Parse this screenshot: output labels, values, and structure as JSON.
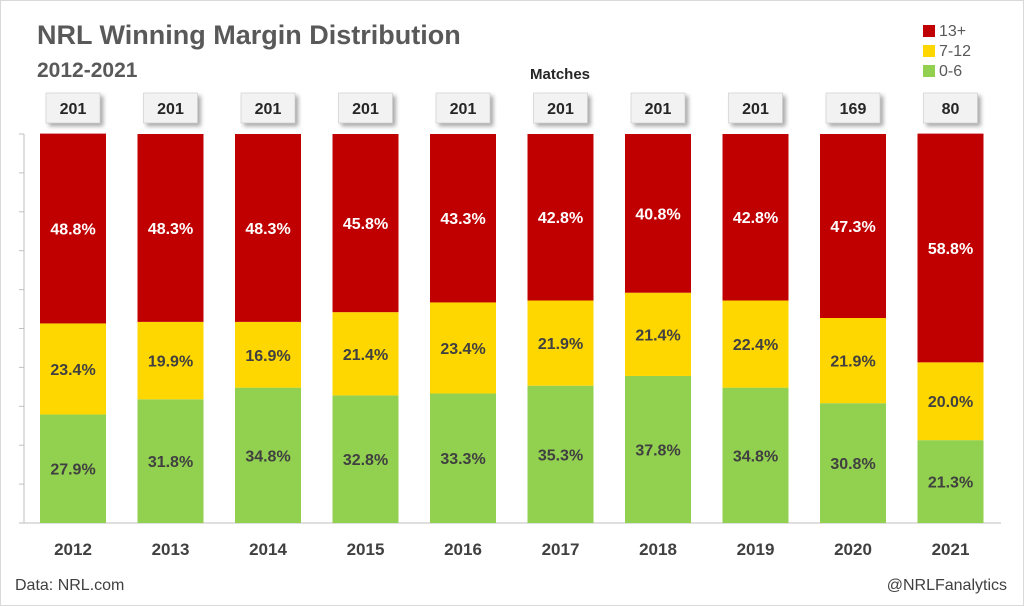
{
  "chart_data": {
    "type": "bar",
    "stacked": true,
    "percent": true,
    "title": "NRL Winning Margin Distribution",
    "subtitle": "2012-2021",
    "counts_label": "Matches",
    "categories": [
      "2012",
      "2013",
      "2014",
      "2015",
      "2016",
      "2017",
      "2018",
      "2019",
      "2020",
      "2021"
    ],
    "matches": [
      201,
      201,
      201,
      201,
      201,
      201,
      201,
      201,
      169,
      80
    ],
    "series": [
      {
        "name": "0-6",
        "color": "#92d050",
        "text_color": "#404040",
        "values": [
          27.9,
          31.8,
          34.8,
          32.8,
          33.3,
          35.3,
          37.8,
          34.8,
          30.8,
          21.3
        ]
      },
      {
        "name": "7-12",
        "color": "#ffd700",
        "text_color": "#404040",
        "values": [
          23.4,
          19.9,
          16.9,
          21.4,
          23.4,
          21.9,
          21.4,
          22.4,
          21.9,
          20.0
        ]
      },
      {
        "name": "13+",
        "color": "#c00000",
        "text_color": "#ffffff",
        "values": [
          48.8,
          48.3,
          48.3,
          45.8,
          43.3,
          42.8,
          40.8,
          42.8,
          47.3,
          58.8
        ]
      }
    ],
    "legend": [
      "13+",
      "7-12",
      "0-6"
    ],
    "ylim": [
      0,
      100
    ],
    "grid": false,
    "legend_position": "top-right"
  },
  "footer": {
    "source": "Data: NRL.com",
    "credit": "@NRLFanalytics"
  }
}
